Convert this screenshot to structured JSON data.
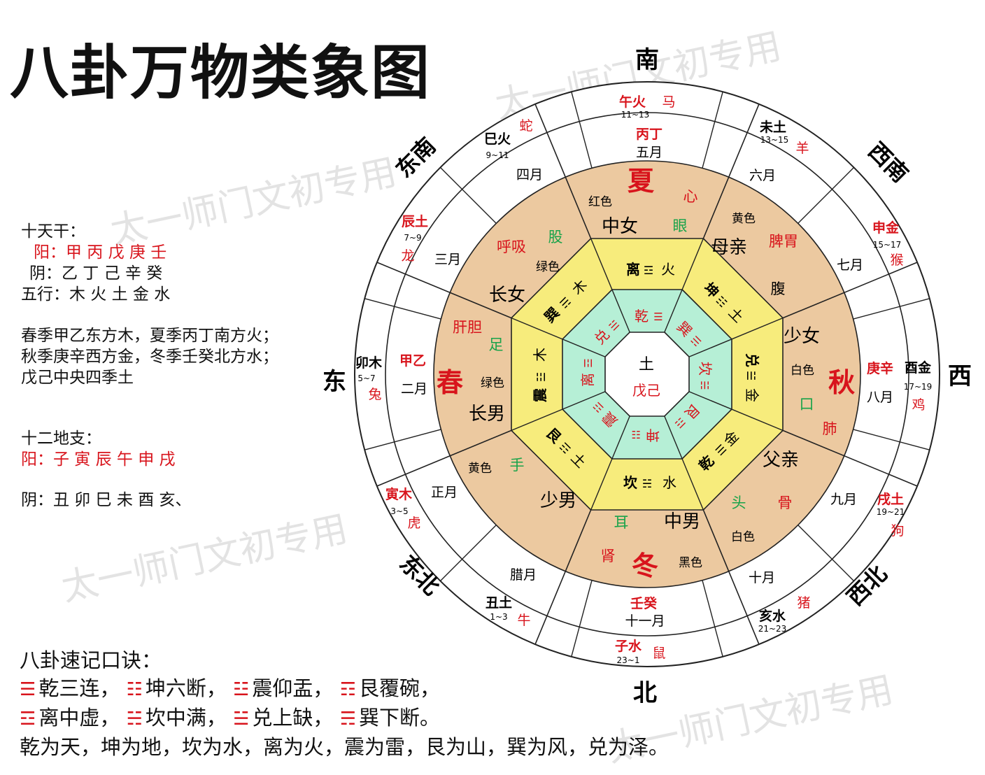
{
  "title": "八卦万物类象图",
  "watermark": "太一师门文初专用",
  "colors": {
    "red": "#d8141c",
    "outer_ring": "#ffffff",
    "season_ring": "#ecc9a0",
    "trigram_ring": "#f7ec7c",
    "inner_ring": "#b6efd6",
    "center": "#ffffff",
    "line": "#222222"
  },
  "directions": {
    "south": "南",
    "southwest": "西南",
    "west": "西",
    "northwest": "西北",
    "north": "北",
    "northeast": "东北",
    "east": "东",
    "southeast": "东南"
  },
  "branches": {
    "wu": {
      "name": "午火",
      "hours": "11~13",
      "animal": "马"
    },
    "wei": {
      "name": "未土",
      "hours": "13~15",
      "animal": "羊"
    },
    "shen": {
      "name": "申金",
      "hours": "15~17",
      "animal": "猴"
    },
    "you": {
      "name": "酉金",
      "hours": "17~19",
      "animal": "鸡"
    },
    "xu": {
      "name": "戌土",
      "hours": "19~21",
      "animal": "狗"
    },
    "hai": {
      "name": "亥水",
      "hours": "21~23",
      "animal": "猪"
    },
    "zi": {
      "name": "子水",
      "hours": "23~1",
      "animal": "鼠"
    },
    "chou": {
      "name": "丑土",
      "hours": "1~3",
      "animal": "牛"
    },
    "yin": {
      "name": "寅木",
      "hours": "3~5",
      "animal": "虎"
    },
    "mao": {
      "name": "卯木",
      "hours": "5~7",
      "animal": "兔"
    },
    "chen": {
      "name": "辰土",
      "hours": "7~9",
      "animal": "龙"
    },
    "si": {
      "name": "巳火",
      "hours": "9~11",
      "animal": "蛇"
    }
  },
  "months": {
    "m1": "正月",
    "m2": "二月",
    "m3": "三月",
    "m4": "四月",
    "m5": "五月",
    "m6": "六月",
    "m7": "七月",
    "m8": "八月",
    "m9": "九月",
    "m10": "十月",
    "m11": "十一月",
    "m12": "腊月"
  },
  "stems": {
    "south": "丙丁",
    "west": "庚辛",
    "north": "壬癸",
    "east": "甲乙"
  },
  "seasons": {
    "summer": "夏",
    "autumn": "秋",
    "winter": "冬",
    "spring": "春"
  },
  "sectors": {
    "s": {
      "color": "红色",
      "person": "中女",
      "organ": "心",
      "body": "眼"
    },
    "sw": {
      "color": "黄色",
      "person": "母亲",
      "organ": "脾胃",
      "body": "腹"
    },
    "w": {
      "color": "白色",
      "person": "少女",
      "organ": "肺",
      "body": "口"
    },
    "nw": {
      "color": "白色",
      "person": "父亲",
      "organ": "骨",
      "body": "头"
    },
    "n": {
      "color": "黑色",
      "person": "中男",
      "organ": "肾",
      "body": "耳"
    },
    "ne": {
      "color": "黄色",
      "person": "少男",
      "body": "手"
    },
    "e": {
      "color": "绿色",
      "person": "长男",
      "organ": "肝胆",
      "body": "足"
    },
    "se": {
      "color": "绿色",
      "person": "长女",
      "organ": "呼吸",
      "body": "股"
    }
  },
  "later_heaven": {
    "s": {
      "gua": "离",
      "sym": "☲",
      "elem": "火"
    },
    "sw": {
      "gua": "坤",
      "sym": "☷",
      "elem": "土"
    },
    "w": {
      "gua": "兑",
      "sym": "☱",
      "elem": "金"
    },
    "nw": {
      "gua": "乾",
      "sym": "☰",
      "elem": "金"
    },
    "n": {
      "gua": "坎",
      "sym": "☵",
      "elem": "水"
    },
    "ne": {
      "gua": "艮",
      "sym": "☶",
      "elem": "土"
    },
    "e": {
      "gua": "震",
      "sym": "☳",
      "elem": "木"
    },
    "se": {
      "gua": "巽",
      "sym": "☴",
      "elem": "木"
    }
  },
  "early_heaven": {
    "s": {
      "gua": "乾",
      "sym": "☰"
    },
    "sw": {
      "gua": "巽",
      "sym": "☴"
    },
    "w": {
      "gua": "坎",
      "sym": "☵"
    },
    "nw": {
      "gua": "艮",
      "sym": "☶"
    },
    "n": {
      "gua": "坤",
      "sym": "☷"
    },
    "ne": {
      "gua": "震",
      "sym": "☳"
    },
    "e": {
      "gua": "离",
      "sym": "☲"
    },
    "se": {
      "gua": "兑",
      "sym": "☱"
    }
  },
  "center": {
    "top": "土",
    "bottom": "戊己"
  },
  "side": {
    "stems_title": "十天干：",
    "stems_yang": "阳：甲 丙 戊 庚 壬",
    "stems_yin": "阴：乙 丁 己 辛 癸",
    "wuxing": "五行：木 火 土 金 水",
    "rule1": "春季甲乙东方木，夏季丙丁南方火；",
    "rule2": "秋季庚辛西方金，冬季壬癸北方水；",
    "rule3": "戊己中央四季土",
    "branches_title": "十二地支：",
    "branches_yang": "阳：子 寅 辰 午 申 戌",
    "branches_yin": "阴：丑 卯 巳 未 酉 亥、"
  },
  "mnemonic": {
    "title": "八卦速记口诀：",
    "l1": [
      {
        "sym": "☰",
        "text": "乾三连，"
      },
      {
        "sym": "☷",
        "text": "坤六断，"
      },
      {
        "sym": "☳",
        "text": "震仰盂，"
      },
      {
        "sym": "☶",
        "text": "艮覆碗，"
      }
    ],
    "l2": [
      {
        "sym": "☲",
        "text": "离中虚，"
      },
      {
        "sym": "☵",
        "text": "坎中满，"
      },
      {
        "sym": "☱",
        "text": "兑上缺，"
      },
      {
        "sym": "☴",
        "text": "巽下断。"
      }
    ],
    "l3": "乾为天，坤为地，坎为水，离为火，震为雷，艮为山，巽为风，兑为泽。"
  }
}
